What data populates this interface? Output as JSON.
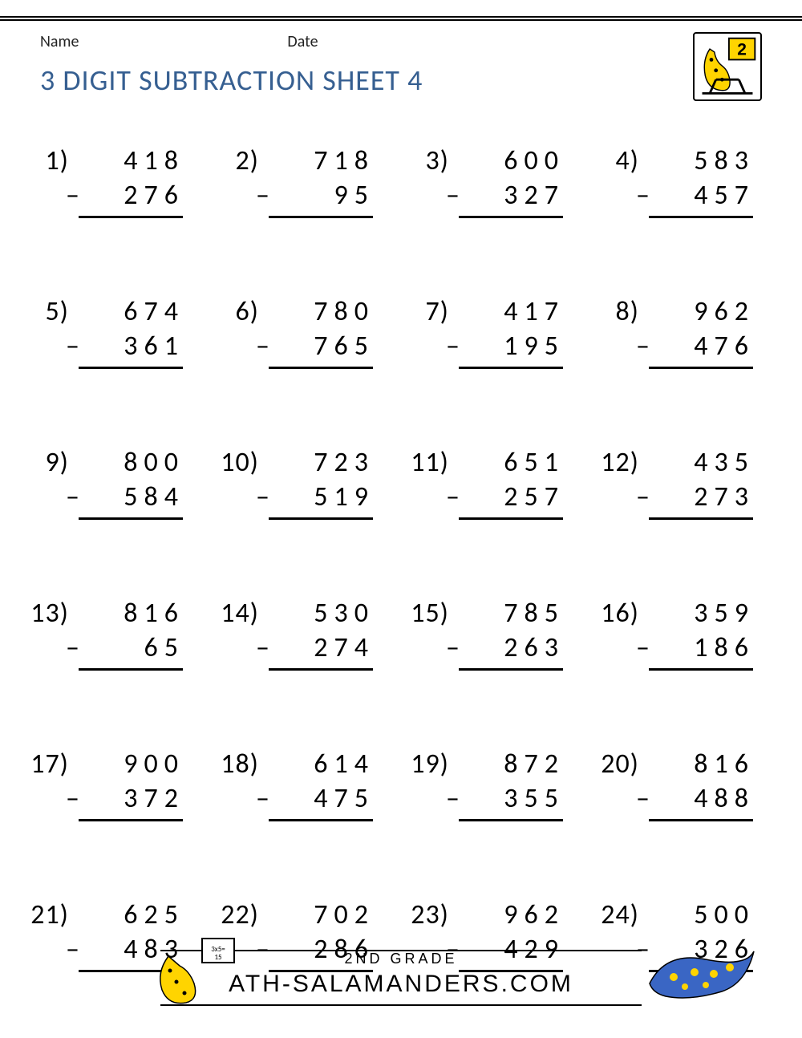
{
  "meta": {
    "name_label": "Name",
    "date_label": "Date"
  },
  "title": "3 DIGIT SUBTRACTION SHEET 4",
  "colors": {
    "title": "#365f91",
    "text": "#000000",
    "background": "#ffffff",
    "logo_yellow": "#ffd400",
    "logo_spots": "#1a1a1a"
  },
  "font_sizes": {
    "title_pt": 28,
    "problem_pt": 26,
    "meta_pt": 15,
    "footer_grade_pt": 14,
    "footer_site_pt": 22
  },
  "operator": "–",
  "problems": [
    {
      "n": "1)",
      "a": "418",
      "b": "276"
    },
    {
      "n": "2)",
      "a": "718",
      "b": "95"
    },
    {
      "n": "3)",
      "a": "600",
      "b": "327"
    },
    {
      "n": "4)",
      "a": "583",
      "b": "457"
    },
    {
      "n": "5)",
      "a": "674",
      "b": "361"
    },
    {
      "n": "6)",
      "a": "780",
      "b": "765"
    },
    {
      "n": "7)",
      "a": "417",
      "b": "195"
    },
    {
      "n": "8)",
      "a": "962",
      "b": "476"
    },
    {
      "n": "9)",
      "a": "800",
      "b": "584"
    },
    {
      "n": "10)",
      "a": "723",
      "b": "519"
    },
    {
      "n": "11)",
      "a": "651",
      "b": "257"
    },
    {
      "n": "12)",
      "a": "435",
      "b": "273"
    },
    {
      "n": "13)",
      "a": "816",
      "b": "65"
    },
    {
      "n": "14)",
      "a": "530",
      "b": "274"
    },
    {
      "n": "15)",
      "a": "785",
      "b": "263"
    },
    {
      "n": "16)",
      "a": "359",
      "b": "186"
    },
    {
      "n": "17)",
      "a": "900",
      "b": "372"
    },
    {
      "n": "18)",
      "a": "614",
      "b": "475"
    },
    {
      "n": "19)",
      "a": "872",
      "b": "355"
    },
    {
      "n": "20)",
      "a": "816",
      "b": "488"
    },
    {
      "n": "21)",
      "a": "625",
      "b": "483"
    },
    {
      "n": "22)",
      "a": "702",
      "b": "286"
    },
    {
      "n": "23)",
      "a": "962",
      "b": "429"
    },
    {
      "n": "24)",
      "a": "500",
      "b": "326"
    }
  ],
  "footer": {
    "grade": "2ND GRADE",
    "site": "ATH-SALAMANDERS.COM"
  },
  "logo_badge_number": "2"
}
